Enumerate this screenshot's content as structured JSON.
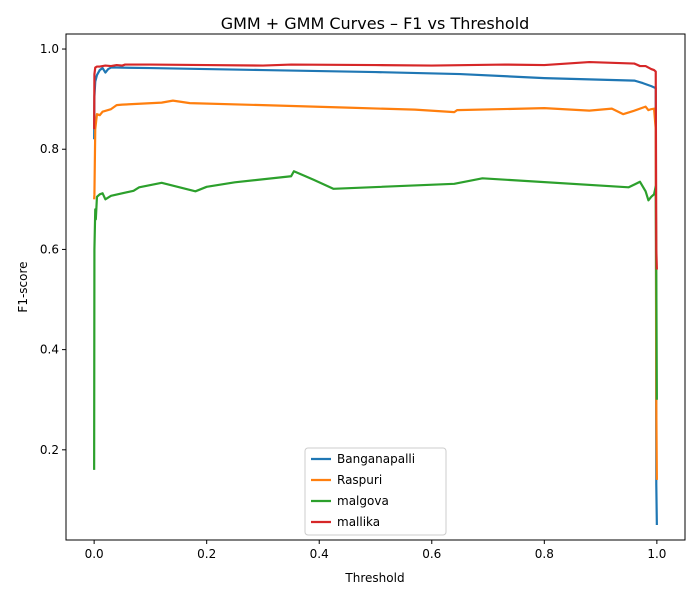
{
  "chart_data": {
    "type": "line",
    "title": "GMM + GMM Curves – F1 vs Threshold",
    "xlabel": "Threshold",
    "ylabel": "F1-score",
    "xlim": [
      -0.05,
      1.05
    ],
    "ylim": [
      0.02,
      1.03
    ],
    "xticks": [
      0.0,
      0.2,
      0.4,
      0.6,
      0.8,
      1.0
    ],
    "xtick_labels": [
      "0.0",
      "0.2",
      "0.4",
      "0.6",
      "0.8",
      "1.0"
    ],
    "yticks": [
      0.2,
      0.4,
      0.6,
      0.8,
      1.0
    ],
    "ytick_labels": [
      "0.2",
      "0.4",
      "0.6",
      "0.8",
      "1.0"
    ],
    "grid": false,
    "legend_position": "lower-center",
    "series": [
      {
        "name": "Banganapalli",
        "color": "#1f77b4",
        "x": [
          0.0,
          0.0005,
          0.002,
          0.005,
          0.01,
          0.015,
          0.02,
          0.025,
          0.03,
          0.04,
          0.1,
          0.3,
          0.5,
          0.65,
          0.8,
          0.96,
          0.975,
          0.99,
          0.998,
          0.999,
          1.0
        ],
        "y": [
          0.82,
          0.905,
          0.935,
          0.948,
          0.958,
          0.962,
          0.953,
          0.96,
          0.963,
          0.963,
          0.962,
          0.958,
          0.954,
          0.95,
          0.942,
          0.937,
          0.932,
          0.926,
          0.922,
          0.13,
          0.05
        ]
      },
      {
        "name": "Raspuri",
        "color": "#ff7f0e",
        "x": [
          0.0,
          0.0005,
          0.002,
          0.005,
          0.01,
          0.015,
          0.03,
          0.04,
          0.05,
          0.12,
          0.14,
          0.17,
          0.3,
          0.45,
          0.57,
          0.64,
          0.645,
          0.8,
          0.88,
          0.92,
          0.94,
          0.96,
          0.98,
          0.985,
          0.99,
          0.995,
          0.998,
          0.999,
          1.0
        ],
        "y": [
          0.7,
          0.71,
          0.84,
          0.87,
          0.868,
          0.875,
          0.88,
          0.888,
          0.889,
          0.893,
          0.897,
          0.892,
          0.888,
          0.883,
          0.879,
          0.874,
          0.878,
          0.882,
          0.877,
          0.881,
          0.87,
          0.877,
          0.885,
          0.878,
          0.88,
          0.881,
          0.84,
          0.29,
          0.14
        ]
      },
      {
        "name": "malgova",
        "color": "#2ca02c",
        "x": [
          0.0,
          0.0005,
          0.002,
          0.003,
          0.005,
          0.01,
          0.015,
          0.02,
          0.03,
          0.07,
          0.08,
          0.12,
          0.18,
          0.2,
          0.25,
          0.35,
          0.355,
          0.39,
          0.425,
          0.64,
          0.69,
          0.95,
          0.97,
          0.98,
          0.985,
          0.99,
          0.995,
          0.998,
          0.999,
          1.0
        ],
        "y": [
          0.16,
          0.6,
          0.68,
          0.66,
          0.705,
          0.71,
          0.712,
          0.7,
          0.707,
          0.717,
          0.724,
          0.733,
          0.716,
          0.725,
          0.734,
          0.746,
          0.756,
          0.739,
          0.721,
          0.731,
          0.742,
          0.724,
          0.735,
          0.716,
          0.698,
          0.705,
          0.71,
          0.726,
          0.55,
          0.3
        ]
      },
      {
        "name": "mallika",
        "color": "#d62728",
        "x": [
          0.0,
          0.0005,
          0.002,
          0.005,
          0.01,
          0.02,
          0.03,
          0.04,
          0.05,
          0.055,
          0.1,
          0.2,
          0.3,
          0.35,
          0.5,
          0.6,
          0.73,
          0.8,
          0.88,
          0.96,
          0.97,
          0.98,
          0.99,
          0.995,
          0.998,
          0.999,
          1.0
        ],
        "y": [
          0.84,
          0.95,
          0.963,
          0.965,
          0.965,
          0.967,
          0.966,
          0.968,
          0.967,
          0.969,
          0.969,
          0.968,
          0.967,
          0.969,
          0.968,
          0.967,
          0.969,
          0.968,
          0.974,
          0.971,
          0.966,
          0.966,
          0.96,
          0.958,
          0.955,
          0.6,
          0.56
        ]
      }
    ]
  }
}
